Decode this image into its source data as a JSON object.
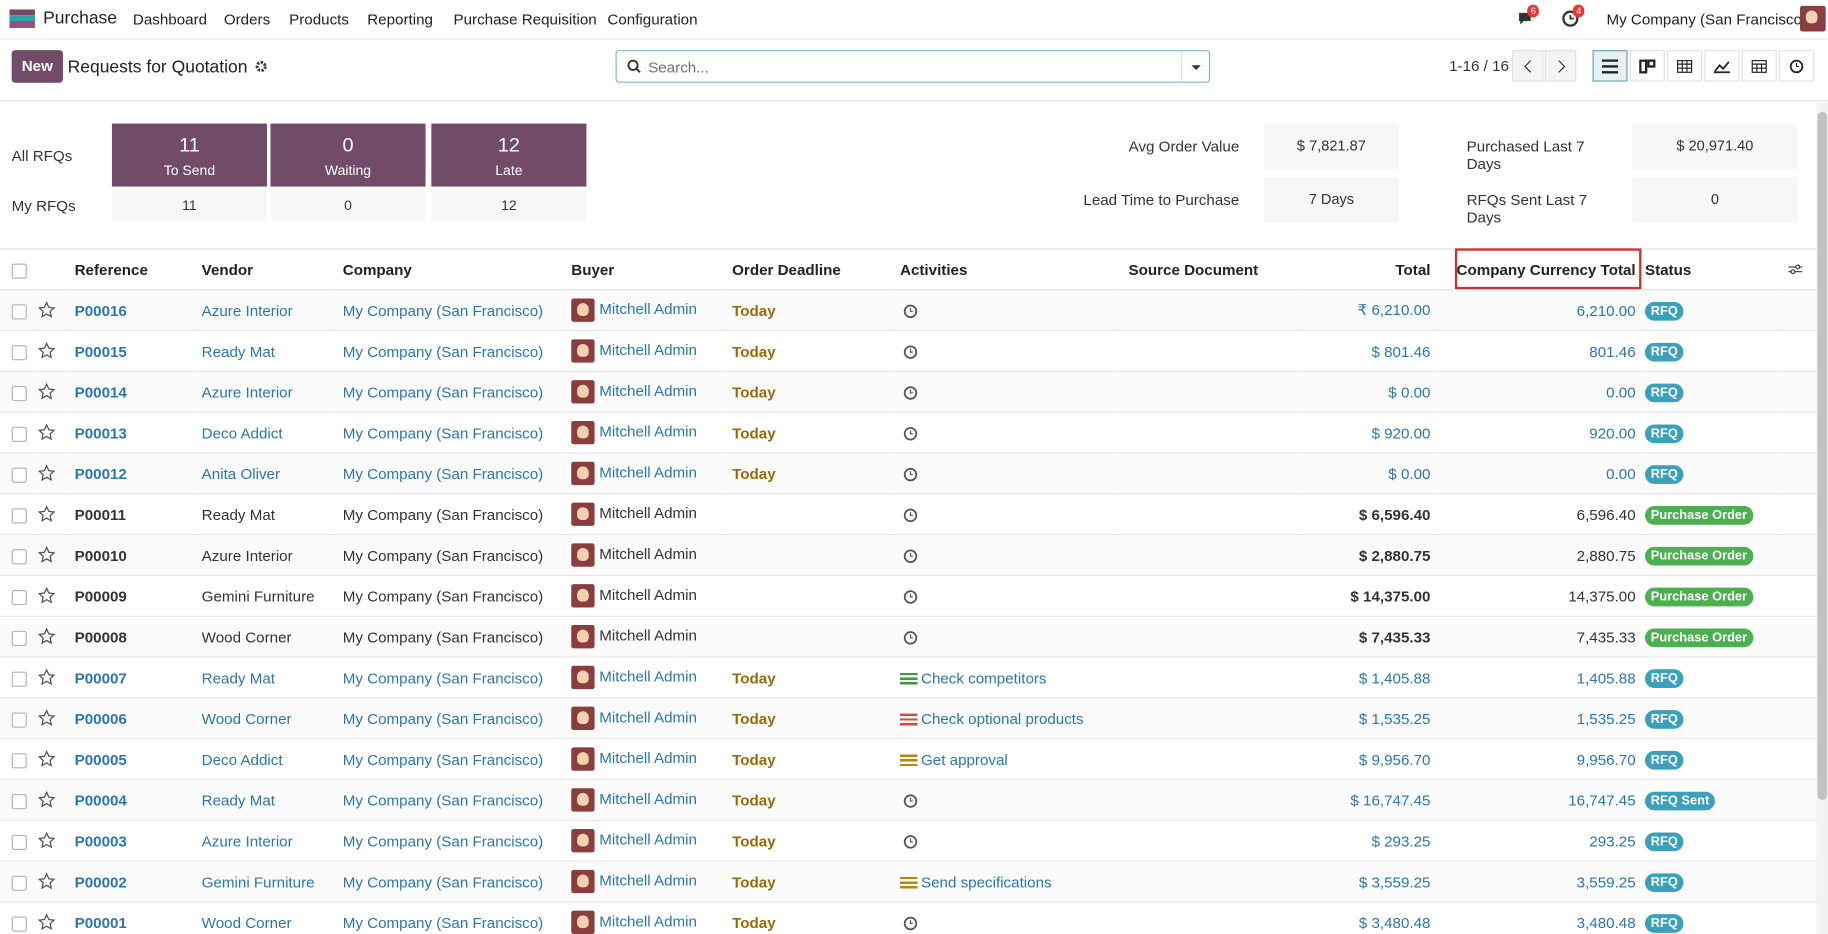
{
  "navbar": {
    "app": "Purchase",
    "menu": [
      "Dashboard",
      "Orders",
      "Products",
      "Reporting",
      "Purchase Requisition",
      "Configuration"
    ],
    "message_count": 6,
    "activity_count": 4,
    "company": "My Company (San Francisco)"
  },
  "control_panel": {
    "new_button": "New",
    "title": "Requests for Quotation",
    "search_placeholder": "Search...",
    "pager": "1-16 / 16"
  },
  "dashboard": {
    "row_labels": [
      "All RFQs",
      "My RFQs"
    ],
    "tiles": [
      {
        "count": 11,
        "label": "To Send",
        "my_count": 11
      },
      {
        "count": 0,
        "label": "Waiting",
        "my_count": 0
      },
      {
        "count": 12,
        "label": "Late",
        "my_count": 12
      }
    ],
    "stats": [
      {
        "label": "Avg Order Value",
        "value": "$ 7,821.87"
      },
      {
        "label": "Purchased Last 7 Days",
        "value": "$ 20,971.40"
      },
      {
        "label": "Lead Time to Purchase",
        "value": "7 Days"
      },
      {
        "label": "RFQs Sent Last 7 Days",
        "value": "0"
      }
    ]
  },
  "table": {
    "columns": [
      "Reference",
      "Vendor",
      "Company",
      "Buyer",
      "Order Deadline",
      "Activities",
      "Source Document",
      "Total",
      "Company Currency Total",
      "Status"
    ],
    "rows": [
      {
        "reference": "P00016",
        "vendor": "Azure Interior",
        "company": "My Company (San Francisco)",
        "buyer": "Mitchell Admin",
        "deadline": "Today",
        "activity": null,
        "activity_color": null,
        "total": "₹ 6,210.00",
        "company_total": "6,210.00",
        "status": "RFQ",
        "status_color": "#3aa0bb",
        "link": true
      },
      {
        "reference": "P00015",
        "vendor": "Ready Mat",
        "company": "My Company (San Francisco)",
        "buyer": "Mitchell Admin",
        "deadline": "Today",
        "activity": null,
        "activity_color": null,
        "total": "$ 801.46",
        "company_total": "801.46",
        "status": "RFQ",
        "status_color": "#3aa0bb",
        "link": true
      },
      {
        "reference": "P00014",
        "vendor": "Azure Interior",
        "company": "My Company (San Francisco)",
        "buyer": "Mitchell Admin",
        "deadline": "Today",
        "activity": null,
        "activity_color": null,
        "total": "$ 0.00",
        "company_total": "0.00",
        "status": "RFQ",
        "status_color": "#3aa0bb",
        "link": true
      },
      {
        "reference": "P00013",
        "vendor": "Deco Addict",
        "company": "My Company (San Francisco)",
        "buyer": "Mitchell Admin",
        "deadline": "Today",
        "activity": null,
        "activity_color": null,
        "total": "$ 920.00",
        "company_total": "920.00",
        "status": "RFQ",
        "status_color": "#3aa0bb",
        "link": true
      },
      {
        "reference": "P00012",
        "vendor": "Anita Oliver",
        "company": "My Company (San Francisco)",
        "buyer": "Mitchell Admin",
        "deadline": "Today",
        "activity": null,
        "activity_color": null,
        "total": "$ 0.00",
        "company_total": "0.00",
        "status": "RFQ",
        "status_color": "#3aa0bb",
        "link": true
      },
      {
        "reference": "P00011",
        "vendor": "Ready Mat",
        "company": "My Company (San Francisco)",
        "buyer": "Mitchell Admin",
        "deadline": null,
        "activity": null,
        "activity_color": null,
        "total": "$ 6,596.40",
        "company_total": "6,596.40",
        "status": "Purchase Order",
        "status_color": "#4caf50",
        "link": false
      },
      {
        "reference": "P00010",
        "vendor": "Azure Interior",
        "company": "My Company (San Francisco)",
        "buyer": "Mitchell Admin",
        "deadline": null,
        "activity": null,
        "activity_color": null,
        "total": "$ 2,880.75",
        "company_total": "2,880.75",
        "status": "Purchase Order",
        "status_color": "#4caf50",
        "link": false
      },
      {
        "reference": "P00009",
        "vendor": "Gemini Furniture",
        "company": "My Company (San Francisco)",
        "buyer": "Mitchell Admin",
        "deadline": null,
        "activity": null,
        "activity_color": null,
        "total": "$ 14,375.00",
        "company_total": "14,375.00",
        "status": "Purchase Order",
        "status_color": "#4caf50",
        "link": false
      },
      {
        "reference": "P00008",
        "vendor": "Wood Corner",
        "company": "My Company (San Francisco)",
        "buyer": "Mitchell Admin",
        "deadline": null,
        "activity": null,
        "activity_color": null,
        "total": "$ 7,435.33",
        "company_total": "7,435.33",
        "status": "Purchase Order",
        "status_color": "#4caf50",
        "link": false
      },
      {
        "reference": "P00007",
        "vendor": "Ready Mat",
        "company": "My Company (San Francisco)",
        "buyer": "Mitchell Admin",
        "deadline": "Today",
        "activity": "Check competitors",
        "activity_color": "#3d9a3d",
        "total": "$ 1,405.88",
        "company_total": "1,405.88",
        "status": "RFQ",
        "status_color": "#3aa0bb",
        "link": true
      },
      {
        "reference": "P00006",
        "vendor": "Wood Corner",
        "company": "My Company (San Francisco)",
        "buyer": "Mitchell Admin",
        "deadline": "Today",
        "activity": "Check optional products",
        "activity_color": "#d9443f",
        "total": "$ 1,535.25",
        "company_total": "1,535.25",
        "status": "RFQ",
        "status_color": "#3aa0bb",
        "link": true
      },
      {
        "reference": "P00005",
        "vendor": "Deco Addict",
        "company": "My Company (San Francisco)",
        "buyer": "Mitchell Admin",
        "deadline": "Today",
        "activity": "Get approval",
        "activity_color": "#b8860b",
        "total": "$ 9,956.70",
        "company_total": "9,956.70",
        "status": "RFQ",
        "status_color": "#3aa0bb",
        "link": true
      },
      {
        "reference": "P00004",
        "vendor": "Ready Mat",
        "company": "My Company (San Francisco)",
        "buyer": "Mitchell Admin",
        "deadline": "Today",
        "activity": null,
        "activity_color": null,
        "total": "$ 16,747.45",
        "company_total": "16,747.45",
        "status": "RFQ Sent",
        "status_color": "#3aa0bb",
        "link": true
      },
      {
        "reference": "P00003",
        "vendor": "Azure Interior",
        "company": "My Company (San Francisco)",
        "buyer": "Mitchell Admin",
        "deadline": "Today",
        "activity": null,
        "activity_color": null,
        "total": "$ 293.25",
        "company_total": "293.25",
        "status": "RFQ",
        "status_color": "#3aa0bb",
        "link": true
      },
      {
        "reference": "P00002",
        "vendor": "Gemini Furniture",
        "company": "My Company (San Francisco)",
        "buyer": "Mitchell Admin",
        "deadline": "Today",
        "activity": "Send specifications",
        "activity_color": "#b8860b",
        "total": "$ 3,559.25",
        "company_total": "3,559.25",
        "status": "RFQ",
        "status_color": "#3aa0bb",
        "link": true
      },
      {
        "reference": "P00001",
        "vendor": "Wood Corner",
        "company": "My Company (San Francisco)",
        "buyer": "Mitchell Admin",
        "deadline": "Today",
        "activity": null,
        "activity_color": null,
        "total": "$ 3,480.48",
        "company_total": "3,480.48",
        "status": "RFQ",
        "status_color": "#3aa0bb",
        "link": true
      }
    ]
  }
}
